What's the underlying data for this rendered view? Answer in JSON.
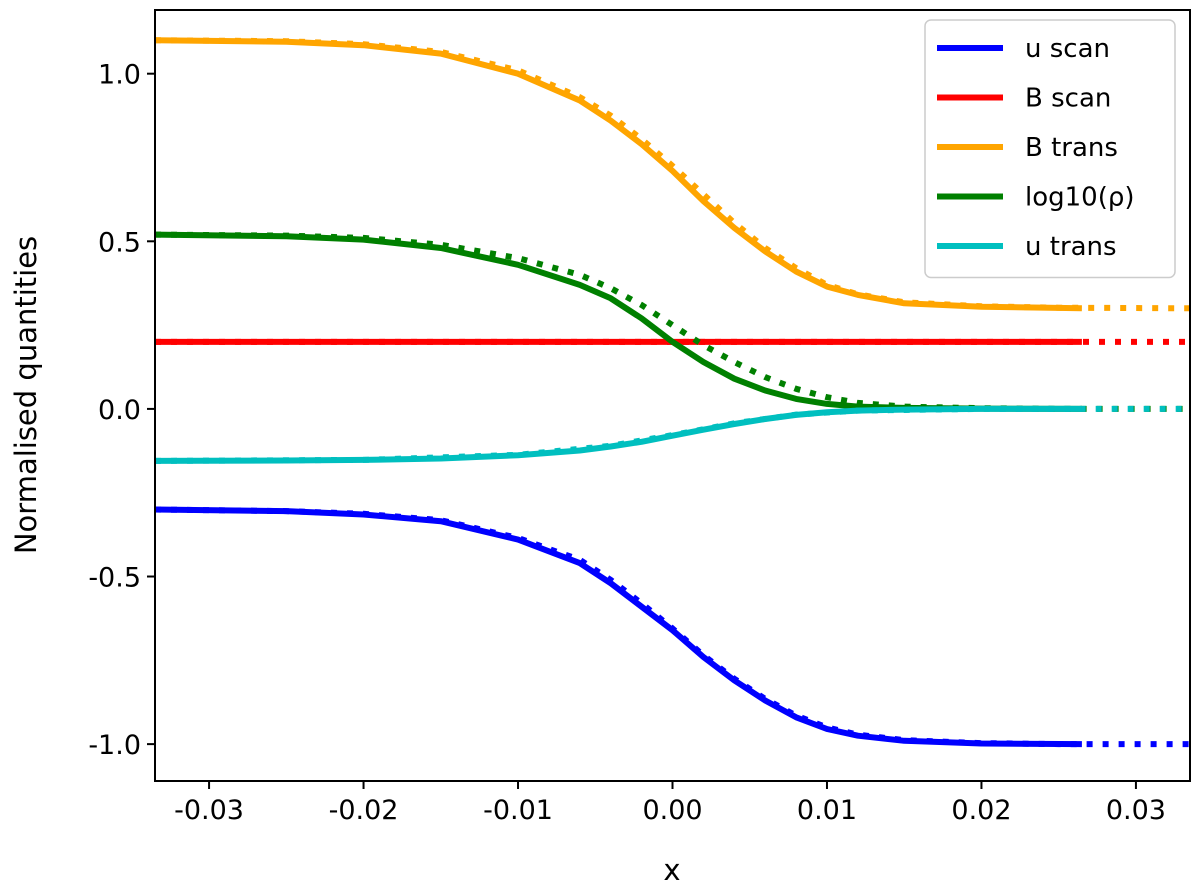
{
  "chart_data": {
    "type": "line",
    "xlabel": "x",
    "ylabel": "Normalised quantities",
    "xlim": [
      -0.0335,
      0.0335
    ],
    "ylim": [
      -1.11,
      1.19
    ],
    "xticks": [
      -0.03,
      -0.02,
      -0.01,
      0.0,
      0.01,
      0.02,
      0.03
    ],
    "xtick_labels": [
      "-0.03",
      "-0.02",
      "-0.01",
      "0.00",
      "0.01",
      "0.02",
      "0.03"
    ],
    "yticks": [
      -1.0,
      -0.5,
      0.0,
      0.5,
      1.0
    ],
    "ytick_labels": [
      "-1.0",
      "-0.5",
      "0.0",
      "0.5",
      "1.0"
    ],
    "grid": false,
    "legend_position": "top-right",
    "series": [
      {
        "name": "u scan",
        "color": "#0000ff",
        "solid": {
          "x": [
            -0.0335,
            -0.025,
            -0.02,
            -0.015,
            -0.01,
            -0.006,
            -0.004,
            -0.002,
            0.0,
            0.002,
            0.004,
            0.006,
            0.008,
            0.01,
            0.012,
            0.015,
            0.02,
            0.0265
          ],
          "y": [
            -0.3,
            -0.305,
            -0.315,
            -0.335,
            -0.39,
            -0.46,
            -0.52,
            -0.59,
            -0.66,
            -0.74,
            -0.81,
            -0.87,
            -0.92,
            -0.955,
            -0.975,
            -0.99,
            -0.998,
            -1.0
          ]
        },
        "dotted": {
          "x": [
            -0.0335,
            -0.025,
            -0.02,
            -0.015,
            -0.01,
            -0.006,
            -0.004,
            -0.002,
            0.0,
            0.002,
            0.004,
            0.006,
            0.008,
            0.01,
            0.012,
            0.015,
            0.02,
            0.025,
            0.0335
          ],
          "y": [
            -0.3,
            -0.305,
            -0.313,
            -0.332,
            -0.385,
            -0.45,
            -0.51,
            -0.58,
            -0.655,
            -0.735,
            -0.805,
            -0.865,
            -0.915,
            -0.95,
            -0.972,
            -0.988,
            -0.997,
            -1.0,
            -1.0
          ]
        }
      },
      {
        "name": "B scan",
        "color": "#ff0000",
        "solid": {
          "x": [
            -0.0335,
            0.0265
          ],
          "y": [
            0.2,
            0.2
          ]
        },
        "dotted": {
          "x": [
            -0.0335,
            0.0335
          ],
          "y": [
            0.2,
            0.2
          ]
        }
      },
      {
        "name": "B trans",
        "color": "#ffa500",
        "solid": {
          "x": [
            -0.0335,
            -0.025,
            -0.02,
            -0.015,
            -0.01,
            -0.006,
            -0.004,
            -0.002,
            0.0,
            0.002,
            0.004,
            0.006,
            0.008,
            0.01,
            0.012,
            0.015,
            0.02,
            0.0265
          ],
          "y": [
            1.1,
            1.095,
            1.085,
            1.06,
            1.0,
            0.92,
            0.86,
            0.79,
            0.71,
            0.62,
            0.54,
            0.47,
            0.41,
            0.365,
            0.34,
            0.315,
            0.305,
            0.3
          ]
        },
        "dotted": {
          "x": [
            -0.0335,
            -0.025,
            -0.02,
            -0.015,
            -0.01,
            -0.006,
            -0.004,
            -0.002,
            0.0,
            0.002,
            0.004,
            0.006,
            0.008,
            0.01,
            0.012,
            0.015,
            0.02,
            0.025,
            0.0335
          ],
          "y": [
            1.1,
            1.097,
            1.088,
            1.065,
            1.01,
            0.93,
            0.875,
            0.805,
            0.725,
            0.64,
            0.555,
            0.48,
            0.42,
            0.37,
            0.342,
            0.318,
            0.306,
            0.302,
            0.3
          ]
        }
      },
      {
        "name": "log10(ρ)",
        "color": "#008000",
        "solid": {
          "x": [
            -0.0335,
            -0.025,
            -0.02,
            -0.015,
            -0.01,
            -0.006,
            -0.004,
            -0.002,
            0.0,
            0.002,
            0.004,
            0.006,
            0.008,
            0.01,
            0.012,
            0.015,
            0.02,
            0.0265
          ],
          "y": [
            0.52,
            0.515,
            0.505,
            0.48,
            0.43,
            0.37,
            0.33,
            0.27,
            0.2,
            0.14,
            0.09,
            0.055,
            0.03,
            0.015,
            0.007,
            0.003,
            0.001,
            0.0
          ]
        },
        "dotted": {
          "x": [
            -0.0335,
            -0.025,
            -0.02,
            -0.015,
            -0.01,
            -0.006,
            -0.004,
            -0.002,
            0.0,
            0.002,
            0.004,
            0.006,
            0.008,
            0.01,
            0.012,
            0.015,
            0.02,
            0.025,
            0.0335
          ],
          "y": [
            0.52,
            0.517,
            0.51,
            0.49,
            0.45,
            0.4,
            0.36,
            0.31,
            0.25,
            0.19,
            0.14,
            0.095,
            0.06,
            0.035,
            0.018,
            0.007,
            0.002,
            0.0,
            0.0
          ]
        }
      },
      {
        "name": "u trans",
        "color": "#00bfbf",
        "solid": {
          "x": [
            -0.0335,
            -0.025,
            -0.02,
            -0.015,
            -0.01,
            -0.006,
            -0.004,
            -0.002,
            0.0,
            0.002,
            0.004,
            0.006,
            0.008,
            0.01,
            0.012,
            0.015,
            0.02,
            0.0265
          ],
          "y": [
            -0.155,
            -0.154,
            -0.152,
            -0.148,
            -0.138,
            -0.124,
            -0.112,
            -0.098,
            -0.08,
            -0.062,
            -0.045,
            -0.03,
            -0.018,
            -0.01,
            -0.005,
            -0.002,
            0.0,
            0.0
          ]
        },
        "dotted": {
          "x": [
            -0.0335,
            -0.02,
            -0.01,
            -0.004,
            0.0,
            0.004,
            0.008,
            0.012,
            0.02,
            0.0335
          ],
          "y": [
            -0.155,
            -0.152,
            -0.137,
            -0.11,
            -0.078,
            -0.043,
            -0.017,
            -0.005,
            0.0,
            0.0
          ]
        }
      }
    ]
  }
}
